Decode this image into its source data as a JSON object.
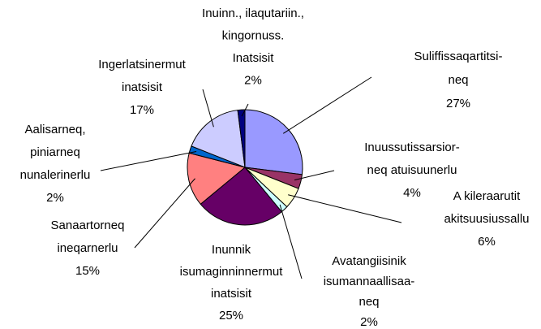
{
  "chart_data": {
    "type": "pie",
    "categories": [
      [
        "Suliffissaqartitsi-",
        "neq"
      ],
      [
        "Inuussutissarsior-",
        "neq atuisuunerlu"
      ],
      [
        "A kileraarutit",
        "akitsuusiussallu"
      ],
      [
        "Avatangiisinik",
        "isumannaallisaa-",
        "neq"
      ],
      [
        "Inunnik",
        "isumaginninnermut",
        "inatsisit"
      ],
      [
        "Sanaartorneq",
        "ineqarnerlu"
      ],
      [
        "Aalisarneq,",
        "piniarneq",
        "nunalerinerlu"
      ],
      [
        "Ingerlatsinermut",
        "inatsisit"
      ],
      [
        "Inuinn., ilaqutariin.,",
        "kingornuss.",
        "Inatsisit"
      ]
    ],
    "values": [
      27,
      4,
      6,
      2,
      25,
      15,
      2,
      17,
      2
    ],
    "value_labels": [
      "27%",
      "4%",
      "6%",
      "2%",
      "25%",
      "15%",
      "2%",
      "17%",
      "2%"
    ],
    "colors": [
      "#9999FF",
      "#993366",
      "#FFFFCC",
      "#CCFFFF",
      "#660066",
      "#FF8080",
      "#0066CC",
      "#CCCCFF",
      "#000080"
    ]
  }
}
